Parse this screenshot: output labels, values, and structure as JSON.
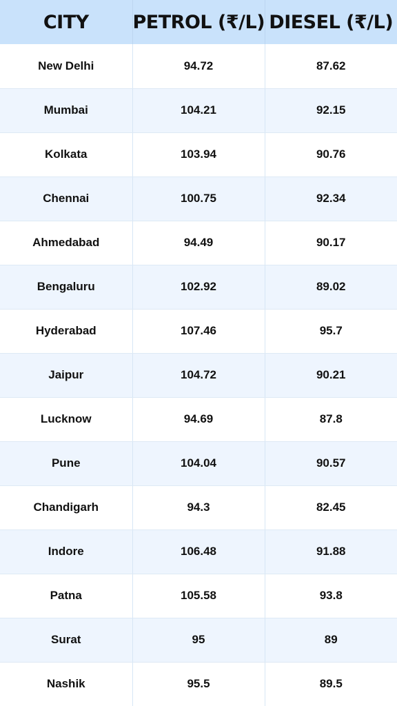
{
  "chart_data": {
    "type": "table",
    "columns": [
      "CITY",
      "PETROL (₹/L)",
      "DIESEL (₹/L)"
    ],
    "rows": [
      [
        "New Delhi",
        "94.72",
        "87.62"
      ],
      [
        "Mumbai",
        "104.21",
        "92.15"
      ],
      [
        "Kolkata",
        "103.94",
        "90.76"
      ],
      [
        "Chennai",
        "100.75",
        "92.34"
      ],
      [
        "Ahmedabad",
        "94.49",
        "90.17"
      ],
      [
        "Bengaluru",
        "102.92",
        "89.02"
      ],
      [
        "Hyderabad",
        "107.46",
        "95.7"
      ],
      [
        "Jaipur",
        "104.72",
        "90.21"
      ],
      [
        "Lucknow",
        "94.69",
        "87.8"
      ],
      [
        "Pune",
        "104.04",
        "90.57"
      ],
      [
        "Chandigarh",
        "94.3",
        "82.45"
      ],
      [
        "Indore",
        "106.48",
        "91.88"
      ],
      [
        "Patna",
        "105.58",
        "93.8"
      ],
      [
        "Surat",
        "95",
        "89"
      ],
      [
        "Nashik",
        "95.5",
        "89.5"
      ]
    ]
  },
  "colors": {
    "header_bg": "#c9e2fb",
    "row_alt_bg": "#eef5fe",
    "row_bg": "#ffffff",
    "text": "#111111"
  }
}
